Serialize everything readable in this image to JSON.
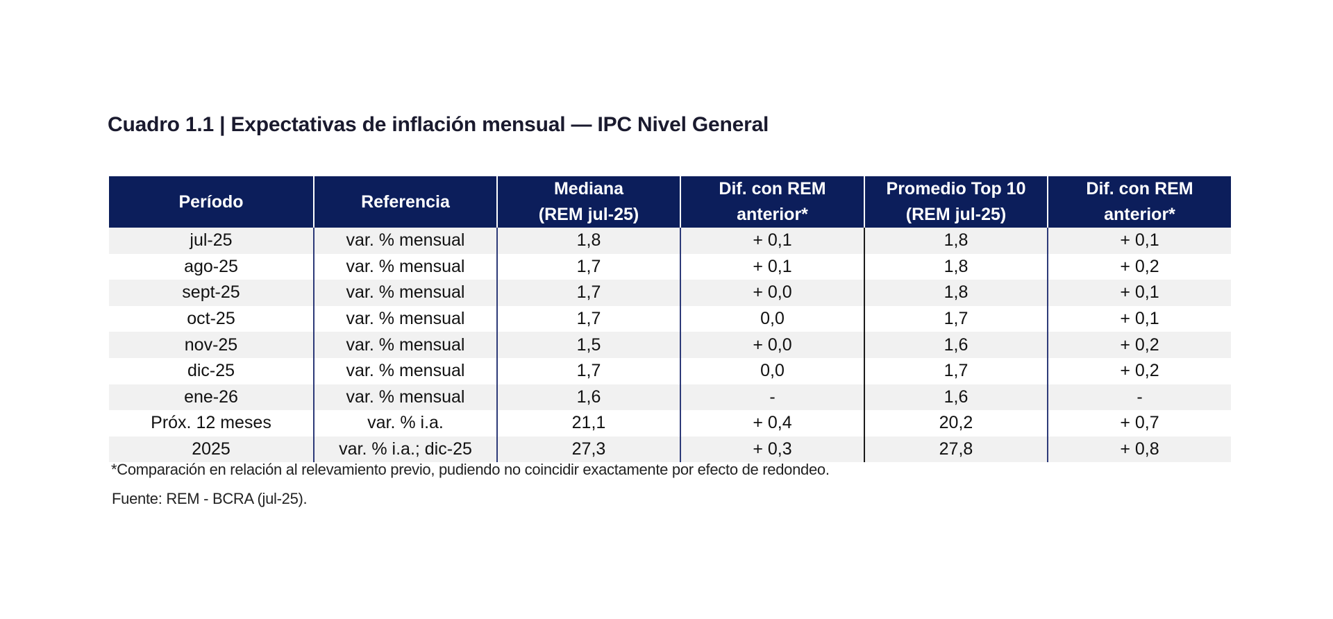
{
  "title": "Cuadro 1.1 | Expectativas de inflación mensual — IPC Nivel General",
  "table": {
    "headers": [
      {
        "line1": "Período",
        "line2": ""
      },
      {
        "line1": "Referencia",
        "line2": ""
      },
      {
        "line1": "Mediana",
        "line2": "(REM jul-25)"
      },
      {
        "line1": "Dif. con REM",
        "line2": "anterior*"
      },
      {
        "line1": "Promedio Top 10",
        "line2": "(REM jul-25)"
      },
      {
        "line1": "Dif. con REM",
        "line2": "anterior*"
      }
    ],
    "rows": [
      [
        "jul-25",
        "var. % mensual",
        "1,8",
        "+ 0,1",
        "1,8",
        "+ 0,1"
      ],
      [
        "ago-25",
        "var. % mensual",
        "1,7",
        "+ 0,1",
        "1,8",
        "+ 0,2"
      ],
      [
        "sept-25",
        "var. % mensual",
        "1,7",
        "+ 0,0",
        "1,8",
        "+ 0,1"
      ],
      [
        "oct-25",
        "var. % mensual",
        "1,7",
        "0,0",
        "1,7",
        "+ 0,1"
      ],
      [
        "nov-25",
        "var. % mensual",
        "1,5",
        "+ 0,0",
        "1,6",
        "+ 0,2"
      ],
      [
        "dic-25",
        "var. % mensual",
        "1,7",
        "0,0",
        "1,7",
        "+ 0,2"
      ],
      [
        "ene-26",
        "var. % mensual",
        "1,6",
        "-",
        "1,6",
        "-"
      ],
      [
        "Próx. 12 meses",
        "var. % i.a.",
        "21,1",
        "+ 0,4",
        "20,2",
        "+ 0,7"
      ],
      [
        "2025",
        "var. % i.a.; dic-25",
        "27,3",
        "+ 0,3",
        "27,8",
        "+ 0,8"
      ]
    ]
  },
  "footnote": "*Comparación en relación al relevamiento previo, pudiendo no coincidir exactamente por efecto de redondeo.",
  "source": "Fuente: REM - BCRA (jul-25).",
  "colors": {
    "header_bg": "#0c1e5b",
    "header_text": "#ffffff",
    "row_stripe": "#f1f1f1",
    "column_rule": "#2d3a78"
  }
}
